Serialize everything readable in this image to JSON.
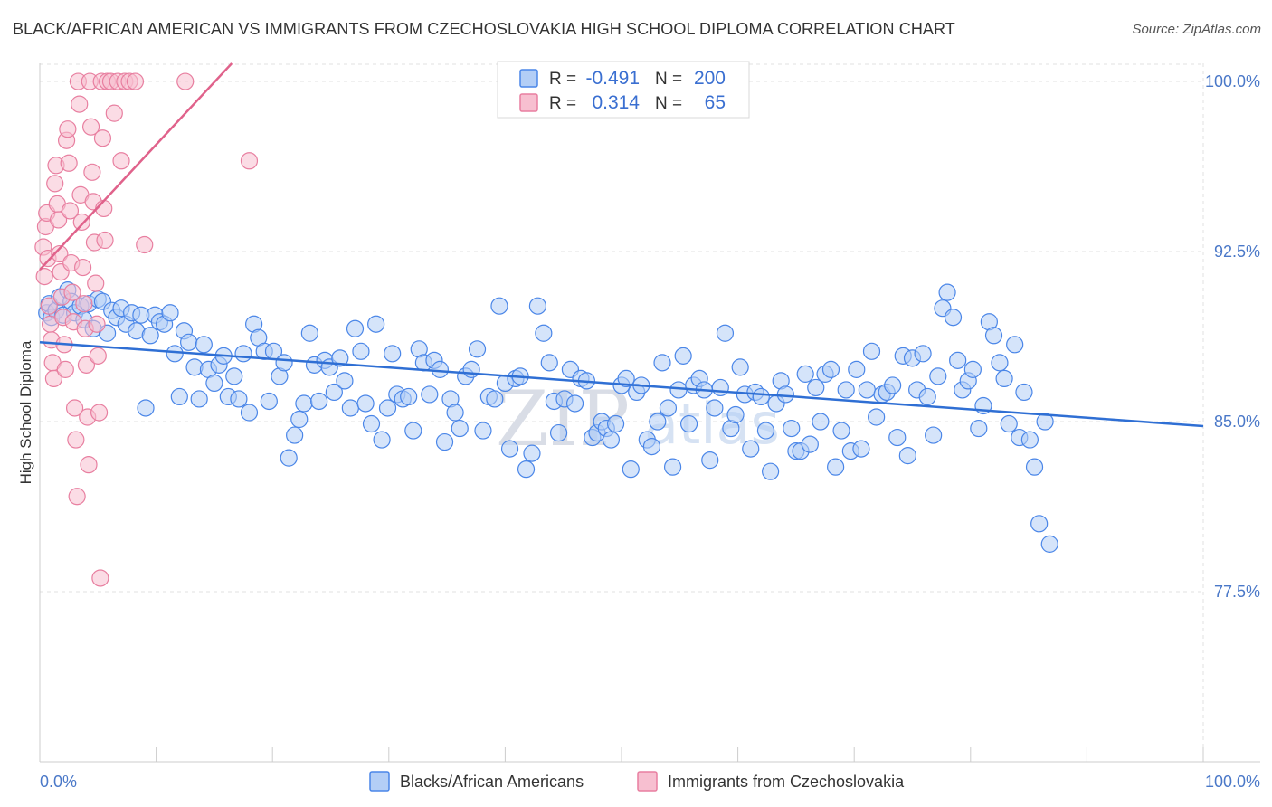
{
  "title": "BLACK/AFRICAN AMERICAN VS IMMIGRANTS FROM CZECHOSLOVAKIA HIGH SCHOOL DIPLOMA CORRELATION CHART",
  "source": "Source: ZipAtlas.com",
  "watermark": {
    "zip": "ZIP",
    "atlas": "atlas"
  },
  "stats": {
    "r_label": "R =",
    "n_label": "N =",
    "rows": [
      {
        "r": "-0.491",
        "n": "200",
        "color": "#4a86e8"
      },
      {
        "r": "0.314",
        "n": "65",
        "color": "#e87fa0"
      }
    ]
  },
  "chart_data": {
    "type": "scatter",
    "title": "BLACK/AFRICAN AMERICAN VS IMMIGRANTS FROM CZECHOSLOVAKIA HIGH SCHOOL DIPLOMA CORRELATION CHART",
    "xlabel": "",
    "ylabel": "High School Diploma",
    "xlim": [
      0,
      100
    ],
    "ylim": [
      70,
      100.8
    ],
    "x_tick_labels": [
      "0.0%",
      "100.0%"
    ],
    "y_ticks": [
      77.5,
      85.0,
      92.5,
      100.0
    ],
    "y_tick_labels": [
      "77.5%",
      "85.0%",
      "92.5%",
      "100.0%"
    ],
    "grid": true,
    "legend_position": "bottom-center",
    "series": [
      {
        "name": "Blacks/African Americans",
        "color": "#4a86e8",
        "fill": "#b3cef6",
        "trend": {
          "x": [
            0,
            100
          ],
          "y": [
            88.5,
            84.8
          ]
        },
        "points": [
          [
            0.6,
            89.8
          ],
          [
            0.8,
            90.2
          ],
          [
            1.0,
            89.6
          ],
          [
            1.4,
            89.9
          ],
          [
            1.7,
            90.5
          ],
          [
            2.0,
            89.7
          ],
          [
            2.4,
            90.8
          ],
          [
            2.7,
            90.3
          ],
          [
            3.0,
            89.8
          ],
          [
            3.5,
            90.1
          ],
          [
            3.8,
            89.5
          ],
          [
            4.2,
            90.2
          ],
          [
            4.6,
            89.1
          ],
          [
            5.0,
            90.4
          ],
          [
            5.4,
            90.3
          ],
          [
            5.8,
            88.9
          ],
          [
            6.2,
            89.9
          ],
          [
            6.6,
            89.6
          ],
          [
            7.0,
            90.0
          ],
          [
            7.4,
            89.3
          ],
          [
            7.9,
            89.8
          ],
          [
            8.3,
            89.0
          ],
          [
            8.7,
            89.7
          ],
          [
            9.1,
            85.6
          ],
          [
            9.5,
            88.8
          ],
          [
            9.9,
            89.7
          ],
          [
            10.3,
            89.4
          ],
          [
            10.7,
            89.3
          ],
          [
            11.2,
            89.8
          ],
          [
            11.6,
            88.0
          ],
          [
            12.0,
            86.1
          ],
          [
            12.4,
            89.0
          ],
          [
            12.8,
            88.5
          ],
          [
            13.3,
            87.4
          ],
          [
            13.7,
            86.0
          ],
          [
            14.1,
            88.4
          ],
          [
            14.5,
            87.3
          ],
          [
            15.0,
            86.7
          ],
          [
            15.4,
            87.5
          ],
          [
            15.8,
            87.9
          ],
          [
            16.2,
            86.1
          ],
          [
            16.7,
            87.0
          ],
          [
            17.1,
            86.0
          ],
          [
            17.5,
            88.0
          ],
          [
            18.0,
            85.4
          ],
          [
            18.4,
            89.3
          ],
          [
            18.8,
            88.7
          ],
          [
            19.3,
            88.1
          ],
          [
            19.7,
            85.9
          ],
          [
            20.1,
            88.1
          ],
          [
            20.6,
            87.0
          ],
          [
            21.0,
            87.6
          ],
          [
            21.4,
            83.4
          ],
          [
            21.9,
            84.4
          ],
          [
            22.3,
            85.1
          ],
          [
            22.7,
            85.8
          ],
          [
            23.2,
            88.9
          ],
          [
            23.6,
            87.5
          ],
          [
            24.0,
            85.9
          ],
          [
            24.5,
            87.7
          ],
          [
            24.9,
            87.4
          ],
          [
            25.3,
            86.3
          ],
          [
            25.8,
            87.8
          ],
          [
            26.2,
            86.8
          ],
          [
            26.7,
            85.6
          ],
          [
            27.1,
            89.1
          ],
          [
            27.6,
            88.1
          ],
          [
            28.0,
            85.8
          ],
          [
            28.5,
            84.9
          ],
          [
            28.9,
            89.3
          ],
          [
            29.4,
            84.2
          ],
          [
            29.9,
            85.6
          ],
          [
            30.3,
            88.0
          ],
          [
            30.7,
            86.2
          ],
          [
            31.2,
            86.0
          ],
          [
            31.7,
            86.1
          ],
          [
            32.1,
            84.6
          ],
          [
            32.6,
            88.2
          ],
          [
            33.0,
            87.6
          ],
          [
            33.5,
            86.2
          ],
          [
            33.9,
            87.7
          ],
          [
            34.4,
            87.3
          ],
          [
            34.8,
            84.1
          ],
          [
            35.3,
            86.0
          ],
          [
            35.7,
            85.4
          ],
          [
            36.1,
            84.7
          ],
          [
            36.6,
            87.0
          ],
          [
            37.1,
            87.3
          ],
          [
            37.6,
            88.2
          ],
          [
            38.1,
            84.6
          ],
          [
            38.6,
            86.1
          ],
          [
            39.1,
            86.0
          ],
          [
            39.5,
            90.1
          ],
          [
            40.0,
            86.7
          ],
          [
            40.4,
            83.8
          ],
          [
            40.9,
            86.9
          ],
          [
            41.3,
            87.0
          ],
          [
            41.8,
            82.9
          ],
          [
            42.3,
            83.6
          ],
          [
            42.8,
            90.1
          ],
          [
            43.3,
            88.9
          ],
          [
            43.8,
            87.6
          ],
          [
            44.2,
            85.9
          ],
          [
            44.6,
            84.5
          ],
          [
            45.1,
            86.0
          ],
          [
            45.6,
            87.3
          ],
          [
            46.0,
            85.8
          ],
          [
            46.5,
            86.9
          ],
          [
            47.0,
            86.8
          ],
          [
            47.5,
            84.3
          ],
          [
            47.9,
            84.5
          ],
          [
            48.3,
            85.0
          ],
          [
            48.7,
            84.7
          ],
          [
            49.1,
            84.2
          ],
          [
            49.5,
            84.9
          ],
          [
            50.0,
            86.6
          ],
          [
            50.4,
            86.9
          ],
          [
            50.8,
            82.9
          ],
          [
            51.3,
            86.3
          ],
          [
            51.7,
            86.6
          ],
          [
            52.2,
            84.2
          ],
          [
            52.6,
            83.9
          ],
          [
            53.1,
            85.0
          ],
          [
            53.5,
            87.6
          ],
          [
            54.0,
            85.6
          ],
          [
            54.4,
            83.0
          ],
          [
            54.9,
            86.4
          ],
          [
            55.3,
            87.9
          ],
          [
            55.8,
            84.9
          ],
          [
            56.2,
            86.6
          ],
          [
            56.7,
            86.9
          ],
          [
            57.1,
            86.4
          ],
          [
            57.6,
            83.3
          ],
          [
            58.0,
            85.6
          ],
          [
            58.5,
            86.5
          ],
          [
            58.9,
            88.9
          ],
          [
            59.4,
            84.7
          ],
          [
            59.8,
            85.3
          ],
          [
            60.2,
            87.4
          ],
          [
            60.6,
            86.2
          ],
          [
            61.1,
            83.8
          ],
          [
            61.5,
            86.3
          ],
          [
            62.0,
            86.1
          ],
          [
            62.4,
            84.6
          ],
          [
            62.8,
            82.8
          ],
          [
            63.3,
            85.8
          ],
          [
            63.7,
            86.8
          ],
          [
            64.1,
            86.2
          ],
          [
            64.6,
            84.7
          ],
          [
            65.0,
            83.7
          ],
          [
            65.4,
            83.7
          ],
          [
            65.8,
            87.1
          ],
          [
            66.2,
            84.0
          ],
          [
            66.7,
            86.5
          ],
          [
            67.1,
            85.0
          ],
          [
            67.5,
            87.1
          ],
          [
            68.0,
            87.3
          ],
          [
            68.4,
            83.0
          ],
          [
            68.9,
            84.6
          ],
          [
            69.3,
            86.4
          ],
          [
            69.7,
            83.7
          ],
          [
            70.2,
            87.3
          ],
          [
            70.6,
            83.8
          ],
          [
            71.1,
            86.4
          ],
          [
            71.5,
            88.1
          ],
          [
            71.9,
            85.2
          ],
          [
            72.4,
            86.2
          ],
          [
            72.8,
            86.3
          ],
          [
            73.3,
            86.6
          ],
          [
            73.7,
            84.3
          ],
          [
            74.2,
            87.9
          ],
          [
            74.6,
            83.5
          ],
          [
            75.0,
            87.8
          ],
          [
            75.4,
            86.4
          ],
          [
            75.9,
            88.0
          ],
          [
            76.3,
            86.1
          ],
          [
            76.8,
            84.4
          ],
          [
            77.2,
            87.0
          ],
          [
            77.6,
            90.0
          ],
          [
            78.0,
            90.7
          ],
          [
            78.5,
            89.6
          ],
          [
            78.9,
            87.7
          ],
          [
            79.3,
            86.4
          ],
          [
            79.8,
            86.8
          ],
          [
            80.2,
            87.3
          ],
          [
            80.7,
            84.7
          ],
          [
            81.1,
            85.7
          ],
          [
            81.6,
            89.4
          ],
          [
            82.0,
            88.8
          ],
          [
            82.5,
            87.6
          ],
          [
            82.9,
            86.9
          ],
          [
            83.3,
            84.9
          ],
          [
            83.8,
            88.4
          ],
          [
            84.2,
            84.3
          ],
          [
            84.6,
            86.3
          ],
          [
            85.1,
            84.2
          ],
          [
            85.5,
            83.0
          ],
          [
            85.9,
            80.5
          ],
          [
            86.4,
            85.0
          ],
          [
            86.8,
            79.6
          ]
        ]
      },
      {
        "name": "Immigrants from Czechoslovakia",
        "color": "#e87fa0",
        "fill": "#f7bfd0",
        "trend": {
          "x": [
            0,
            16.5
          ],
          "y": [
            91.7,
            100.8
          ]
        },
        "points": [
          [
            0.3,
            92.7
          ],
          [
            0.4,
            91.4
          ],
          [
            0.5,
            93.6
          ],
          [
            0.6,
            94.2
          ],
          [
            0.7,
            92.2
          ],
          [
            0.8,
            90.1
          ],
          [
            0.9,
            89.3
          ],
          [
            1.0,
            88.6
          ],
          [
            1.1,
            87.6
          ],
          [
            1.2,
            86.9
          ],
          [
            1.3,
            95.5
          ],
          [
            1.4,
            96.3
          ],
          [
            1.5,
            94.6
          ],
          [
            1.6,
            93.9
          ],
          [
            1.7,
            92.4
          ],
          [
            1.8,
            91.6
          ],
          [
            1.9,
            90.5
          ],
          [
            2.0,
            89.6
          ],
          [
            2.1,
            88.4
          ],
          [
            2.2,
            87.3
          ],
          [
            2.3,
            97.4
          ],
          [
            2.4,
            97.9
          ],
          [
            2.5,
            96.4
          ],
          [
            2.6,
            94.3
          ],
          [
            2.7,
            92.0
          ],
          [
            2.8,
            90.7
          ],
          [
            2.9,
            89.4
          ],
          [
            3.0,
            85.6
          ],
          [
            3.1,
            84.2
          ],
          [
            3.2,
            81.7
          ],
          [
            3.3,
            100.0
          ],
          [
            3.4,
            99.0
          ],
          [
            3.5,
            95.0
          ],
          [
            3.6,
            93.8
          ],
          [
            3.7,
            91.8
          ],
          [
            3.8,
            90.2
          ],
          [
            3.9,
            89.1
          ],
          [
            4.0,
            87.5
          ],
          [
            4.1,
            85.2
          ],
          [
            4.2,
            83.1
          ],
          [
            4.3,
            100.0
          ],
          [
            4.4,
            98.0
          ],
          [
            4.5,
            96.0
          ],
          [
            4.6,
            94.7
          ],
          [
            4.7,
            92.9
          ],
          [
            4.8,
            91.1
          ],
          [
            4.9,
            89.3
          ],
          [
            5.0,
            87.9
          ],
          [
            5.1,
            85.4
          ],
          [
            5.2,
            78.1
          ],
          [
            5.3,
            100.0
          ],
          [
            5.4,
            97.5
          ],
          [
            5.5,
            94.4
          ],
          [
            5.6,
            93.0
          ],
          [
            5.8,
            100.0
          ],
          [
            6.1,
            100.0
          ],
          [
            6.4,
            98.6
          ],
          [
            6.7,
            100.0
          ],
          [
            7.0,
            96.5
          ],
          [
            7.3,
            100.0
          ],
          [
            7.7,
            100.0
          ],
          [
            8.2,
            100.0
          ],
          [
            9.0,
            92.8
          ],
          [
            12.5,
            100.0
          ],
          [
            18.0,
            96.5
          ]
        ]
      }
    ]
  },
  "legend": {
    "items": [
      {
        "label": "Blacks/African Americans",
        "color": "#4a86e8",
        "fill": "#b3cef6"
      },
      {
        "label": "Immigrants from Czechoslovakia",
        "color": "#e87fa0",
        "fill": "#f7bfd0"
      }
    ]
  }
}
